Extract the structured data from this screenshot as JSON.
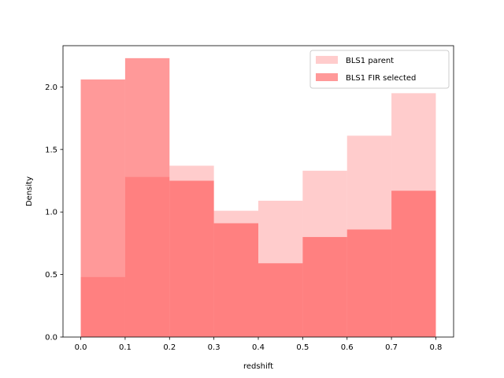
{
  "chart_data": {
    "type": "bar",
    "title": "",
    "xlabel": "redshift",
    "ylabel": "Density",
    "xlim": [
      -0.04,
      0.84
    ],
    "ylim": [
      0,
      2.33
    ],
    "xticks": [
      "0.0",
      "0.1",
      "0.2",
      "0.3",
      "0.4",
      "0.5",
      "0.6",
      "0.7",
      "0.8"
    ],
    "yticks": [
      "0.0",
      "0.5",
      "1.0",
      "1.5",
      "2.0"
    ],
    "bin_edges": [
      0.0,
      0.1,
      0.2,
      0.3,
      0.4,
      0.5,
      0.6,
      0.7,
      0.8
    ],
    "grid": false,
    "legend_position": "top-right",
    "series": [
      {
        "name": "BLS1 parent",
        "color": "#ff9999",
        "alpha": 0.5,
        "values": [
          0.48,
          1.28,
          1.37,
          1.01,
          1.09,
          1.33,
          1.61,
          1.95
        ]
      },
      {
        "name": "BLS1 FIR selected",
        "color": "#ff3333",
        "alpha": 0.5,
        "values": [
          2.06,
          2.23,
          1.25,
          0.91,
          0.59,
          0.8,
          0.86,
          1.17
        ]
      }
    ]
  }
}
